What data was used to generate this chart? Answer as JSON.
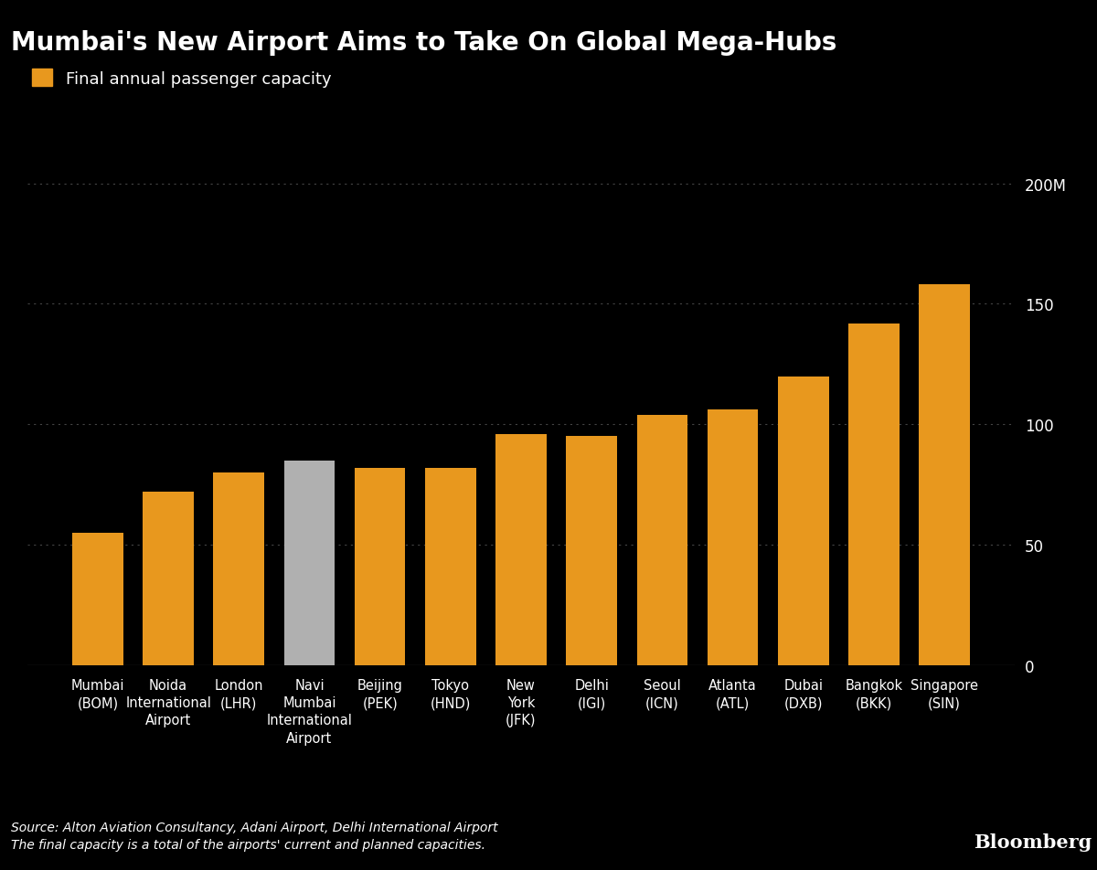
{
  "title": "Mumbai's New Airport Aims to Take On Global Mega-Hubs",
  "legend_label": "Final annual passenger capacity",
  "categories": [
    "Mumbai\n(BOM)",
    "Noida\nInternational\nAirport",
    "London\n(LHR)",
    "Navi\nMumbai\nInternational\nAirport",
    "Beijing\n(PEK)",
    "Tokyo\n(HND)",
    "New\nYork\n(JFK)",
    "Delhi\n(IGI)",
    "Seoul\n(ICN)",
    "Atlanta\n(ATL)",
    "Dubai\n(DXB)",
    "Bangkok\n(BKK)",
    "Singapore\n(SIN)"
  ],
  "values": [
    55,
    72,
    80,
    85,
    82,
    82,
    96,
    95,
    104,
    106,
    120,
    142,
    158
  ],
  "bar_colors": [
    "#E8981E",
    "#E8981E",
    "#E8981E",
    "#B0B0B0",
    "#E8981E",
    "#E8981E",
    "#E8981E",
    "#E8981E",
    "#E8981E",
    "#E8981E",
    "#E8981E",
    "#E8981E",
    "#E8981E"
  ],
  "background_color": "#000000",
  "text_color": "#FFFFFF",
  "grid_color": "#444444",
  "yticks": [
    0,
    50,
    100,
    150,
    200
  ],
  "ylim": [
    0,
    215
  ],
  "ytick_labels": [
    "0",
    "50",
    "100",
    "150",
    "200M"
  ],
  "source_text": "Source: Alton Aviation Consultancy, Adani Airport, Delhi International Airport\nThe final capacity is a total of the airports' current and planned capacities.",
  "bloomberg_text": "Bloomberg",
  "title_fontsize": 20,
  "legend_fontsize": 13,
  "tick_fontsize": 12,
  "source_fontsize": 10,
  "bar_width": 0.72
}
